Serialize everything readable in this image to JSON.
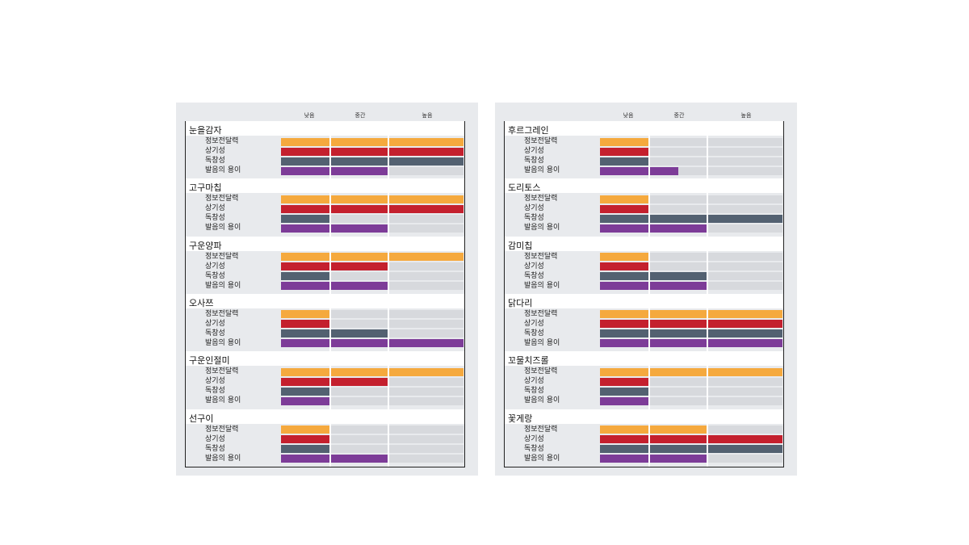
{
  "chart_data": {
    "type": "bar",
    "levels": [
      "낮음",
      "중간",
      "높음"
    ],
    "metrics": [
      "정보전달력",
      "상기성",
      "독창성",
      "발음의 용이"
    ],
    "colors": {
      "정보전달력": "#f5a93e",
      "상기성": "#c4202e",
      "독창성": "#536171",
      "발음의 용이": "#7d3c98"
    },
    "panels": [
      {
        "items": [
          {
            "name": "눈을감자",
            "values": [
              3,
              3,
              3,
              2
            ]
          },
          {
            "name": "고구마칩",
            "values": [
              3,
              3,
              1,
              2
            ]
          },
          {
            "name": "구운양파",
            "values": [
              3,
              2,
              1,
              2
            ]
          },
          {
            "name": "오사쯔",
            "values": [
              1,
              1,
              2,
              3
            ]
          },
          {
            "name": "구운인절미",
            "values": [
              3,
              2,
              1,
              1
            ]
          },
          {
            "name": "선구이",
            "values": [
              1,
              1,
              1,
              2
            ]
          }
        ],
        "metric_labels": [
          "정보전달력",
          "상기성",
          "독창성",
          "발음의 용이"
        ],
        "alt_label_index": 1,
        "alt_label": "발음의 용이"
      },
      {
        "items": [
          {
            "name": "후르그레인",
            "values": [
              1,
              1,
              1,
              1.5
            ]
          },
          {
            "name": "도리토스",
            "values": [
              1,
              1,
              3,
              2
            ]
          },
          {
            "name": "감미칩",
            "values": [
              1,
              1,
              2,
              2
            ]
          },
          {
            "name": "닭다리",
            "values": [
              3,
              3,
              3,
              3
            ]
          },
          {
            "name": "꼬물치즈롤",
            "values": [
              3,
              1,
              1,
              1
            ]
          },
          {
            "name": "꽃게랑",
            "values": [
              2,
              3,
              3,
              2
            ]
          }
        ]
      }
    ]
  },
  "panel_left": {
    "headers": [
      "낮음",
      "중간",
      "높음"
    ],
    "sections": [
      {
        "title": "눈을감자",
        "labels": [
          "정보전달력",
          "상기성",
          "독창성",
          "발음의 용이"
        ]
      },
      {
        "title": "고구마칩",
        "labels": [
          "정보전달력",
          "상기성",
          "독창성",
          "발음의 용이"
        ]
      },
      {
        "title": "구운양파",
        "labels": [
          "정보전달력",
          "상기성",
          "독창성",
          "발음의 용이"
        ]
      },
      {
        "title": "오사쯔",
        "labels": [
          "정보전달력",
          "상기성",
          "독창성",
          "발음의 용이"
        ]
      },
      {
        "title": "구운인절미",
        "labels": [
          "정보전달력",
          "상기성",
          "독창성",
          "발음의 용이"
        ]
      },
      {
        "title": "선구이",
        "labels": [
          "정보전달력",
          "상기성",
          "독창성",
          "발음의 용이"
        ]
      }
    ]
  },
  "panel_right": {
    "headers": [
      "낮음",
      "중간",
      "높음"
    ],
    "sections": [
      {
        "title": "후르그레인",
        "labels": [
          "정보전달력",
          "상기성",
          "독창성",
          "발음의 용이"
        ]
      },
      {
        "title": "도리토스",
        "labels": [
          "정보전달력",
          "상기성",
          "독창성",
          "발음의 용이"
        ]
      },
      {
        "title": "감미칩",
        "labels": [
          "정보전달력",
          "상기성",
          "독창성",
          "발음의 용이"
        ]
      },
      {
        "title": "닭다리",
        "labels": [
          "정보전달력",
          "상기성",
          "독창성",
          "발음의 용이"
        ]
      },
      {
        "title": "꼬물치즈롤",
        "labels": [
          "정보전달력",
          "상기성",
          "독창성",
          "발음의 용이"
        ]
      },
      {
        "title": "꽃게랑",
        "labels": [
          "정보전달력",
          "상기성",
          "독창성",
          "발음의 용이"
        ]
      }
    ]
  }
}
